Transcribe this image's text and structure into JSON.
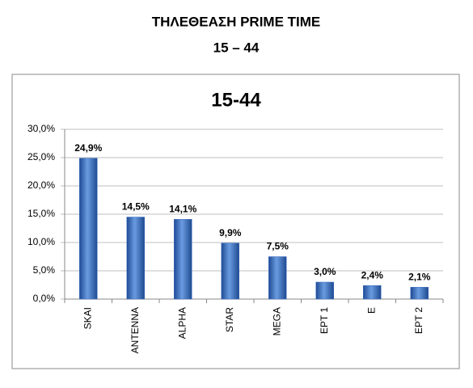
{
  "header": {
    "title": "ΤΗΛΕΘΕΑΣΗ PRIME TIME",
    "subtitle": "15 – 44"
  },
  "chart_data": {
    "type": "bar",
    "title": "15-44",
    "categories": [
      "SKAI",
      "ANTENNA",
      "ALPHA",
      "STAR",
      "MEGA",
      "ΕΡΤ 1",
      "E",
      "ΕΡΤ 2"
    ],
    "values": [
      24.9,
      14.5,
      14.1,
      9.9,
      7.5,
      3.0,
      2.4,
      2.1
    ],
    "value_labels": [
      "24,9%",
      "14,5%",
      "14,1%",
      "9,9%",
      "7,5%",
      "3,0%",
      "2,4%",
      "2,1%"
    ],
    "color": "#3d6fc4",
    "ylim": [
      0,
      30
    ],
    "yticks": [
      {
        "value": 0,
        "label": "0,0%"
      },
      {
        "value": 5,
        "label": "5,0%"
      },
      {
        "value": 10,
        "label": "10,0%"
      },
      {
        "value": 15,
        "label": "15,0%"
      },
      {
        "value": 20,
        "label": "20,0%"
      },
      {
        "value": 25,
        "label": "25,0%"
      },
      {
        "value": 30,
        "label": "30,0%"
      }
    ],
    "grid": true
  }
}
